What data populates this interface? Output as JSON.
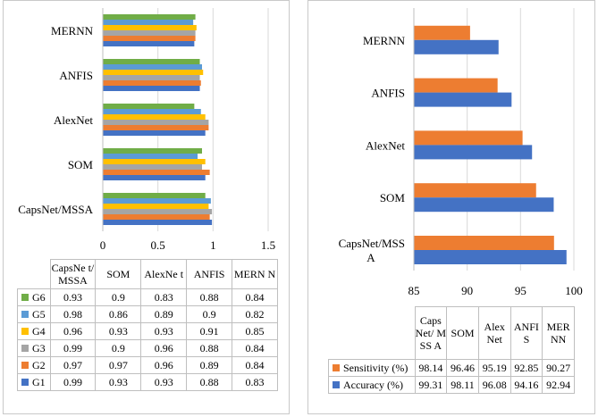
{
  "chart_data": [
    {
      "type": "bar",
      "orientation": "horizontal",
      "categories": [
        "CapsNet/MSSA",
        "SOM",
        "AlexNet",
        "ANFIS",
        "MERNN"
      ],
      "table_headers": [
        "CapsNe t/MSSA",
        "SOM",
        "AlexNe t",
        "ANFIS",
        "MERN N"
      ],
      "series": [
        {
          "name": "G6",
          "color": "#70ad47",
          "values": [
            0.93,
            0.9,
            0.83,
            0.88,
            0.84
          ]
        },
        {
          "name": "G5",
          "color": "#5b9bd5",
          "values": [
            0.98,
            0.86,
            0.89,
            0.9,
            0.82
          ]
        },
        {
          "name": "G4",
          "color": "#ffc000",
          "values": [
            0.96,
            0.93,
            0.93,
            0.91,
            0.85
          ]
        },
        {
          "name": "G3",
          "color": "#a5a5a5",
          "values": [
            0.99,
            0.9,
            0.96,
            0.88,
            0.84
          ]
        },
        {
          "name": "G2",
          "color": "#ed7d31",
          "values": [
            0.97,
            0.97,
            0.96,
            0.89,
            0.84
          ]
        },
        {
          "name": "G1",
          "color": "#4472c4",
          "values": [
            0.99,
            0.93,
            0.93,
            0.88,
            0.83
          ]
        }
      ],
      "xlim": [
        0,
        1.5
      ],
      "xticks": [
        "0",
        "0.5",
        "1",
        "1.5"
      ],
      "grid": true
    },
    {
      "type": "bar",
      "orientation": "horizontal",
      "categories": [
        "CapsNet/MSSA",
        "SOM",
        "AlexNet",
        "ANFIS",
        "MERNN"
      ],
      "table_headers": [
        "Caps Net/ MSS A",
        "SOM",
        "Alex Net",
        "ANFI S",
        "MER NN"
      ],
      "series": [
        {
          "name": "Sensitivity (%)",
          "color": "#ed7d31",
          "values": [
            98.14,
            96.46,
            95.19,
            92.85,
            90.27
          ]
        },
        {
          "name": "Accuracy (%)",
          "color": "#4472c4",
          "values": [
            99.31,
            98.11,
            96.08,
            94.16,
            92.94
          ]
        }
      ],
      "xlim": [
        85,
        100
      ],
      "xticks": [
        "85",
        "90",
        "95",
        "100"
      ],
      "grid": true
    }
  ]
}
